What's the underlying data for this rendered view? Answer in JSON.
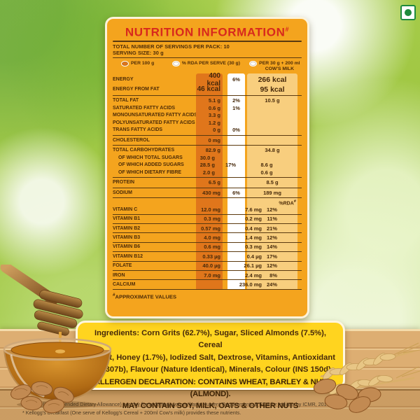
{
  "header": {
    "title": "NUTRITION INFORMATION",
    "title_sup": "#",
    "servings_line": "TOTAL NUMBER OF SERVINGS PER PACK: 10",
    "serving_size_line": "SERVING SIZE: 30 g"
  },
  "legend": [
    {
      "icon": "radio-filled-icon",
      "label": "PER 100 g"
    },
    {
      "icon": "radio-empty-icon",
      "label": "% RDA PER SERVE (30 g)"
    },
    {
      "icon": "radio-empty-icon",
      "label": "PER 30 g + 200 ml",
      "label2": "COW'S MILK"
    }
  ],
  "table": {
    "sections": [
      {
        "rows": [
          {
            "name": "ENERGY",
            "p100": "400 kcal",
            "rda": "6%",
            "milk": "266 kcal",
            "big": true
          },
          {
            "name": "ENERGY FROM FAT",
            "p100": "46 kcal",
            "milk": "95 kcal",
            "big": true
          }
        ]
      },
      {
        "rows": [
          {
            "name": "TOTAL FAT",
            "p100": "5.1 g",
            "rda": "2%",
            "milk": "10.5 g"
          },
          {
            "name": "SATURATED FATTY ACIDS",
            "p100": "0.6 g",
            "rda": "1%"
          },
          {
            "name": "MONOUNSATURATED FATTY ACIDS",
            "p100": "3.3 g"
          },
          {
            "name": "POLYUNSATURATED FATTY ACIDS",
            "p100": "1.2 g"
          },
          {
            "name": "TRANS FATTY ACIDS",
            "p100": "0 g",
            "rda": "0%"
          }
        ]
      },
      {
        "rows": [
          {
            "name": "CHOLESTEROL",
            "p100": "0 mg"
          }
        ]
      },
      {
        "rows": [
          {
            "name": "TOTAL CARBOHYDRATES",
            "p100": "82.9 g",
            "milk": "34.8 g"
          },
          {
            "name": "OF WHICH TOTAL SUGARS",
            "p100": "30.0 g",
            "indent": true
          },
          {
            "name": "OF WHICH ADDED SUGARS",
            "p100": "28.5 g",
            "rda": "17%",
            "milk": "8.6 g",
            "indent": true
          },
          {
            "name": "OF WHICH DIETARY FIBRE",
            "p100": "2.0 g",
            "milk": "0.6 g",
            "indent": true
          }
        ]
      },
      {
        "rows": [
          {
            "name": "PROTEIN",
            "p100": "6.5 g",
            "milk": "8.5 g"
          }
        ]
      },
      {
        "rows": [
          {
            "name": "SODIUM",
            "p100": "430 mg",
            "rda": "6%",
            "milk": "189 mg"
          }
        ]
      }
    ],
    "rda_header": "%RDA",
    "rda_header_sup": "#",
    "vitamins": [
      {
        "name": "VITAMIN C",
        "p100": "12.0 mg",
        "milk": "7.6 mg",
        "pct": "12%"
      },
      {
        "name": "VITAMIN B1",
        "p100": "0.3 mg",
        "milk": "0.2 mg",
        "pct": "11%"
      },
      {
        "name": "VITAMIN B2",
        "p100": "0.57 mg",
        "milk": "0.4 mg",
        "pct": "21%"
      },
      {
        "name": "VITAMIN B3",
        "p100": "4.0 mg",
        "milk": "1.4 mg",
        "pct": "12%"
      },
      {
        "name": "VITAMIN B6",
        "p100": "0.6 mg",
        "milk": "0.3 mg",
        "pct": "14%"
      },
      {
        "name": "VITAMIN B12",
        "p100": "0.33 µg",
        "milk": "0.4 µg",
        "pct": "17%"
      },
      {
        "name": "FOLATE",
        "p100": "40.0 µg",
        "milk": "26.1 µg",
        "pct": "12%"
      },
      {
        "name": "IRON",
        "p100": "7.0 mg",
        "milk": "2.4 mg",
        "pct": "8%"
      },
      {
        "name": "CALCIUM",
        "p100": "",
        "milk": "236.0 mg",
        "pct": "24%"
      }
    ],
    "footnote_sup": "#",
    "footnote": "APPROXIMATE VALUES"
  },
  "ingredients": {
    "label": "Ingredients:",
    "lines": [
      "Corn Grits (62.7%), Sugar, Sliced Almonds (7.5%), Cereal",
      "Extract, Honey (1.7%), Iodized Salt, Dextrose, Vitamins, Antioxidant",
      "(INS 307b), Flavour (Nature Identical), Minerals, Colour (INS 150d)."
    ],
    "allergen_lines": [
      "ALLERGEN DECLARATION: CONTAINS WHEAT, BARLEY & NUT (ALMOND).",
      "MAY CONTAIN SOY, MILK, OATS & OTHER NUTS"
    ]
  },
  "footnotes": [
    "#% RDA (Recommended Dietary Allowance) per day for sedentary women basis Nutrient Requirements & RDA for Indians by ICMR, 2010.",
    "* Kellogg's Breakfast (One serve of Kellogg's Cereal + 200ml Cow's milk) provides these nutrients."
  ],
  "icons": {
    "veg_mark": "vegetarian-mark-icon",
    "decorations": [
      "honey-dipper-illustration",
      "honey-bowl-illustration",
      "almonds-illustration",
      "wheat-illustration"
    ]
  },
  "colors": {
    "card_orange": "#F4A41E",
    "band_dark_orange": "#E0761B",
    "band_light_orange": "#F8CE7E",
    "band_white": "#FFFFFF",
    "ingredients_yellow": "#FFD41F",
    "title_red": "#D8291D",
    "text_brown": "#4E2C07",
    "veg_green": "#1E8A3C"
  }
}
